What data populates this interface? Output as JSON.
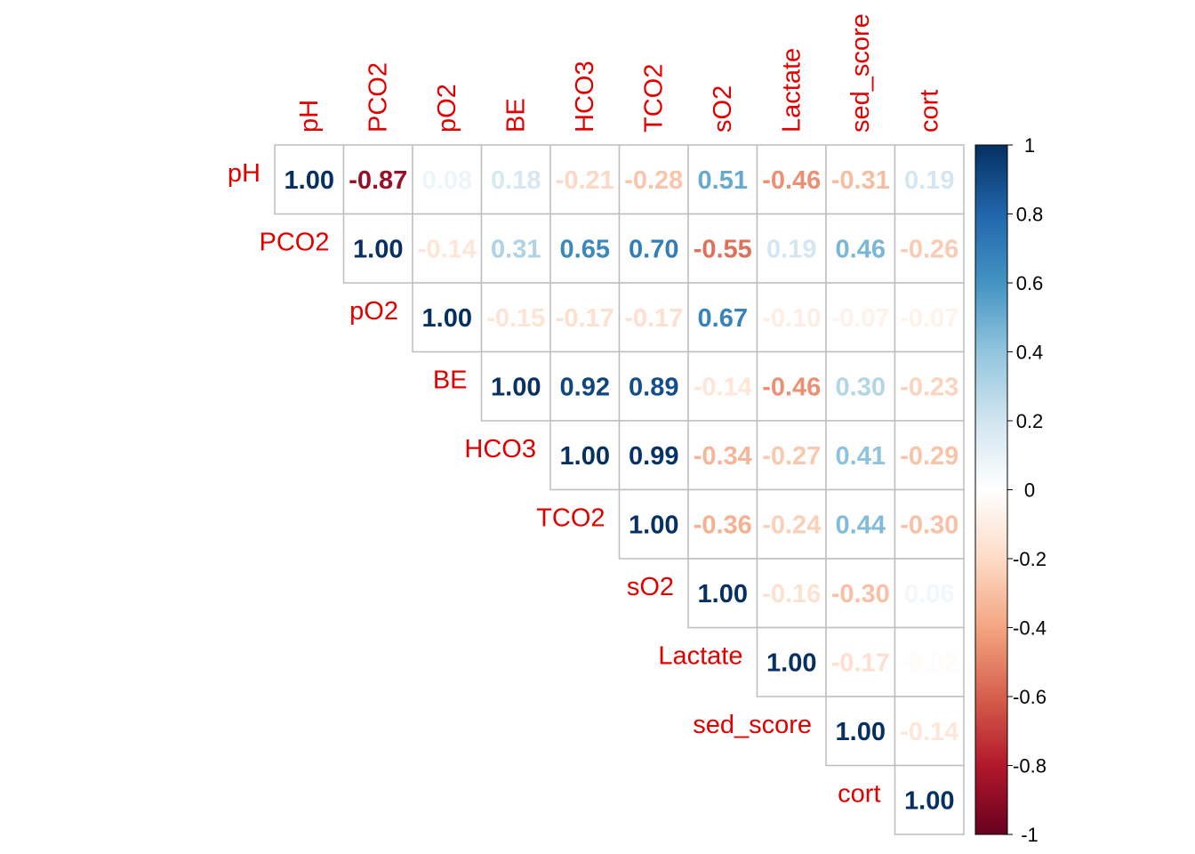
{
  "chart_data": {
    "type": "heatmap",
    "variables": [
      "pH",
      "PCO2",
      "pO2",
      "BE",
      "HCO3",
      "TCO2",
      "sO2",
      "Lactate",
      "sed_score",
      "cort"
    ],
    "matrix": [
      [
        1.0,
        -0.87,
        0.08,
        0.18,
        -0.21,
        -0.28,
        0.51,
        -0.46,
        -0.31,
        0.19
      ],
      [
        null,
        1.0,
        -0.14,
        0.31,
        0.65,
        0.7,
        -0.55,
        0.19,
        0.46,
        -0.26
      ],
      [
        null,
        null,
        1.0,
        -0.15,
        -0.17,
        -0.17,
        0.67,
        -0.1,
        -0.07,
        -0.07
      ],
      [
        null,
        null,
        null,
        1.0,
        0.92,
        0.89,
        -0.14,
        -0.46,
        0.3,
        -0.23
      ],
      [
        null,
        null,
        null,
        null,
        1.0,
        0.99,
        -0.34,
        -0.27,
        0.41,
        -0.29
      ],
      [
        null,
        null,
        null,
        null,
        null,
        1.0,
        -0.36,
        -0.24,
        0.44,
        -0.3
      ],
      [
        null,
        null,
        null,
        null,
        null,
        null,
        1.0,
        -0.16,
        -0.3,
        0.06
      ],
      [
        null,
        null,
        null,
        null,
        null,
        null,
        null,
        1.0,
        -0.17,
        -0.02
      ],
      [
        null,
        null,
        null,
        null,
        null,
        null,
        null,
        null,
        1.0,
        -0.14
      ],
      [
        null,
        null,
        null,
        null,
        null,
        null,
        null,
        null,
        null,
        1.0
      ]
    ],
    "labels": [
      [
        "1.00",
        "-0.87",
        "0.08",
        "0.18",
        "-0.21",
        "-0.28",
        "0.51",
        "-0.46",
        "-0.31",
        "0.19"
      ],
      [
        "",
        "1.00",
        "-0.14",
        "0.31",
        "0.65",
        "0.70",
        "-0.55",
        "0.19",
        "0.46",
        "-0.26"
      ],
      [
        "",
        "",
        "1.00",
        "-0.15",
        "-0.17",
        "-0.17",
        "0.67",
        "-0.10",
        "-0.07",
        "-0.07"
      ],
      [
        "",
        "",
        "",
        "1.00",
        "0.92",
        "0.89",
        "-0.14",
        "-0.46",
        "0.30",
        "-0.23"
      ],
      [
        "",
        "",
        "",
        "",
        "1.00",
        "0.99",
        "-0.34",
        "-0.27",
        "0.41",
        "-0.29"
      ],
      [
        "",
        "",
        "",
        "",
        "",
        "1.00",
        "-0.36",
        "-0.24",
        "0.44",
        "-0.30"
      ],
      [
        "",
        "",
        "",
        "",
        "",
        "",
        "1.00",
        "-0.16",
        "-0.30",
        "0.06"
      ],
      [
        "",
        "",
        "",
        "",
        "",
        "",
        "",
        "1.00",
        "-0.17",
        "-0.02"
      ],
      [
        "",
        "",
        "",
        "",
        "",
        "",
        "",
        "",
        "1.00",
        "-0.14"
      ],
      [
        "",
        "",
        "",
        "",
        "",
        "",
        "",
        "",
        "",
        "1.00"
      ]
    ],
    "triangle": "upper",
    "colorbar": {
      "range": [
        -1,
        1
      ],
      "ticks": [
        "1",
        "0.8",
        "0.6",
        "0.4",
        "0.2",
        "0",
        "-0.2",
        "-0.4",
        "-0.6",
        "-0.8",
        "-1"
      ],
      "tick_values": [
        1,
        0.8,
        0.6,
        0.4,
        0.2,
        0,
        -0.2,
        -0.4,
        -0.6,
        -0.8,
        -1
      ],
      "colors": [
        "#67001F",
        "#B2182B",
        "#D6604D",
        "#F4A582",
        "#FDDBC7",
        "#FFFFFF",
        "#D1E5F0",
        "#92C5DE",
        "#4393C3",
        "#2166AC",
        "#053061"
      ]
    },
    "label_color": "#E00000",
    "grid_color": "#BEBEBE"
  }
}
